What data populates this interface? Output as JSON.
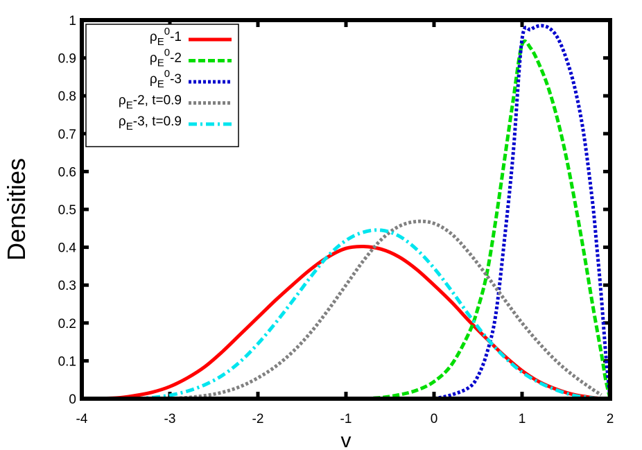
{
  "chart_data": {
    "type": "line",
    "title": "",
    "xlabel": "v",
    "ylabel": "Densities",
    "xlim": [
      -4,
      2
    ],
    "ylim": [
      0,
      1
    ],
    "xticks": [
      "-4",
      "-3",
      "-2",
      "-1",
      "0",
      "1",
      "2"
    ],
    "yticks": [
      "0",
      "0.1",
      "0.2",
      "0.3",
      "0.4",
      "0.5",
      "0.6",
      "0.7",
      "0.8",
      "0.9",
      "1"
    ],
    "grid": false,
    "legend_position": "top-left",
    "series": [
      {
        "name": "ρ_E^0-1",
        "legend": {
          "base": "ρ",
          "sub": "E",
          "sup": "0",
          "suffix": "-1"
        },
        "color": "#ff0000",
        "style": "solid",
        "x": [
          -3.9,
          -3.6,
          -3.4,
          -3.2,
          -3.0,
          -2.8,
          -2.6,
          -2.4,
          -2.2,
          -2.0,
          -1.8,
          -1.6,
          -1.4,
          -1.2,
          -1.0,
          -0.8,
          -0.6,
          -0.4,
          -0.2,
          0.0,
          0.2,
          0.4,
          0.6,
          0.8,
          1.0,
          1.2,
          1.4,
          1.6,
          1.8,
          1.9
        ],
        "y": [
          0.0,
          0.002,
          0.008,
          0.017,
          0.032,
          0.055,
          0.085,
          0.125,
          0.17,
          0.215,
          0.26,
          0.302,
          0.342,
          0.375,
          0.397,
          0.402,
          0.395,
          0.375,
          0.342,
          0.3,
          0.255,
          0.205,
          0.158,
          0.113,
          0.074,
          0.044,
          0.024,
          0.01,
          0.003,
          0.0
        ]
      },
      {
        "name": "ρ_E^0-2",
        "legend": {
          "base": "ρ",
          "sub": "E",
          "sup": "0",
          "suffix": "-2"
        },
        "color": "#00dd00",
        "style": "dashed",
        "x": [
          -0.8,
          -0.6,
          -0.4,
          -0.2,
          0.0,
          0.2,
          0.4,
          0.5,
          0.6,
          0.7,
          0.8,
          0.9,
          1.0,
          1.1,
          1.2,
          1.3,
          1.4,
          1.5,
          1.6,
          1.7,
          1.8,
          1.9,
          1.95,
          2.0
        ],
        "y": [
          0.0,
          0.003,
          0.01,
          0.022,
          0.045,
          0.09,
          0.175,
          0.24,
          0.33,
          0.47,
          0.63,
          0.79,
          0.935,
          0.925,
          0.88,
          0.82,
          0.74,
          0.64,
          0.52,
          0.39,
          0.25,
          0.12,
          0.05,
          0.0
        ]
      },
      {
        "name": "ρ_E^0-3",
        "legend": {
          "base": "ρ",
          "sub": "E",
          "sup": "0",
          "suffix": "-3"
        },
        "color": "#0000cc",
        "style": "dotted",
        "x": [
          0.0,
          0.2,
          0.4,
          0.5,
          0.6,
          0.7,
          0.8,
          0.9,
          1.0,
          1.1,
          1.2,
          1.3,
          1.4,
          1.5,
          1.6,
          1.7,
          1.8,
          1.85,
          1.9,
          1.95,
          2.0
        ],
        "y": [
          0.0,
          0.01,
          0.03,
          0.06,
          0.12,
          0.22,
          0.42,
          0.65,
          0.95,
          0.975,
          0.985,
          0.98,
          0.955,
          0.9,
          0.82,
          0.7,
          0.52,
          0.4,
          0.27,
          0.12,
          0.0
        ]
      },
      {
        "name": "ρE-2, t=0.9",
        "legend": {
          "base": "ρ",
          "sub": "E",
          "sup": "",
          "suffix": "-2, t=0.9"
        },
        "color": "#808080",
        "style": "dotted",
        "x": [
          -3.0,
          -2.8,
          -2.6,
          -2.4,
          -2.2,
          -2.0,
          -1.8,
          -1.6,
          -1.4,
          -1.2,
          -1.0,
          -0.8,
          -0.6,
          -0.4,
          -0.2,
          0.0,
          0.2,
          0.4,
          0.6,
          0.8,
          1.0,
          1.2,
          1.4,
          1.6,
          1.8,
          1.9
        ],
        "y": [
          0.0,
          0.003,
          0.008,
          0.017,
          0.032,
          0.055,
          0.085,
          0.125,
          0.175,
          0.235,
          0.3,
          0.365,
          0.42,
          0.455,
          0.468,
          0.463,
          0.435,
          0.385,
          0.325,
          0.262,
          0.2,
          0.145,
          0.097,
          0.058,
          0.025,
          0.01
        ]
      },
      {
        "name": "ρE-3, t=0.9",
        "legend": {
          "base": "ρ",
          "sub": "E",
          "sup": "",
          "suffix": "-3, t=0.9"
        },
        "color": "#00e5ee",
        "style": "dashdot",
        "x": [
          -3.4,
          -3.2,
          -3.0,
          -2.8,
          -2.6,
          -2.4,
          -2.2,
          -2.0,
          -1.8,
          -1.6,
          -1.4,
          -1.2,
          -1.0,
          -0.8,
          -0.6,
          -0.4,
          -0.2,
          0.0,
          0.2,
          0.4,
          0.6,
          0.8,
          1.0,
          1.2,
          1.4,
          1.6,
          1.8,
          1.9
        ],
        "y": [
          0.0,
          0.003,
          0.009,
          0.02,
          0.037,
          0.062,
          0.098,
          0.145,
          0.2,
          0.26,
          0.322,
          0.378,
          0.418,
          0.44,
          0.445,
          0.43,
          0.395,
          0.345,
          0.285,
          0.22,
          0.16,
          0.11,
          0.07,
          0.042,
          0.022,
          0.008,
          0.002,
          0.0
        ]
      }
    ]
  }
}
